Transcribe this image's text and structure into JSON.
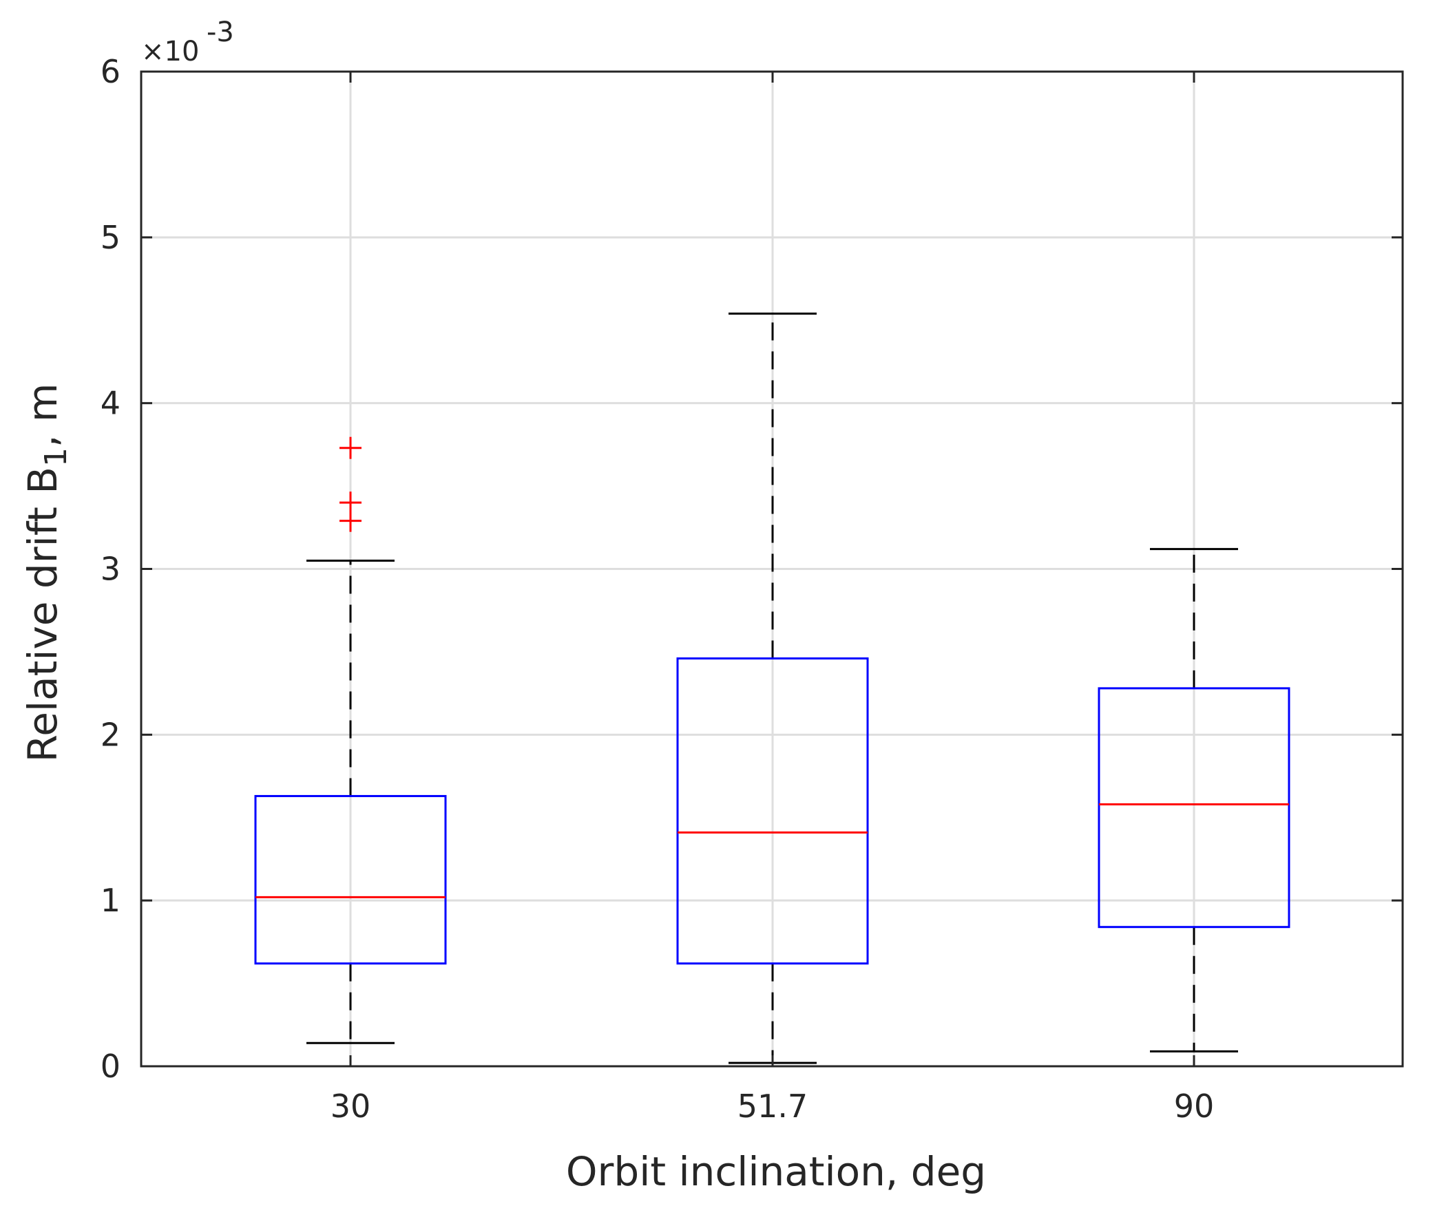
{
  "chart_data": {
    "type": "boxplot",
    "title": "",
    "xlabel": "Orbit inclination, deg",
    "ylabel_main": "Relative drift B",
    "ylabel_subscript": "1",
    "ylabel_suffix": ", m",
    "y_multiplier": {
      "base": "×10",
      "exponent": "-3"
    },
    "ylim": [
      0,
      6
    ],
    "yticks": [
      0,
      1,
      2,
      3,
      4,
      5,
      6
    ],
    "ytick_labels": [
      "0",
      "1",
      "2",
      "3",
      "4",
      "5",
      "6"
    ],
    "grid": true,
    "categories": [
      "30",
      "51.7",
      "90"
    ],
    "boxes": [
      {
        "category": "30",
        "whisker_low": 0.14,
        "q1": 0.62,
        "median": 1.02,
        "q3": 1.63,
        "whisker_high": 3.05,
        "outliers": [
          3.29,
          3.4,
          3.73
        ]
      },
      {
        "category": "51.7",
        "whisker_low": 0.02,
        "q1": 0.62,
        "median": 1.41,
        "q3": 2.46,
        "whisker_high": 4.54,
        "outliers": []
      },
      {
        "category": "90",
        "whisker_low": 0.09,
        "q1": 0.84,
        "median": 1.58,
        "q3": 2.28,
        "whisker_high": 3.12,
        "outliers": []
      }
    ],
    "colors": {
      "box": "#0000ff",
      "median": "#ff0000",
      "whisker": "#000000",
      "outlier": "#ff0000",
      "grid": "#dedede",
      "axis": "#262626"
    }
  }
}
